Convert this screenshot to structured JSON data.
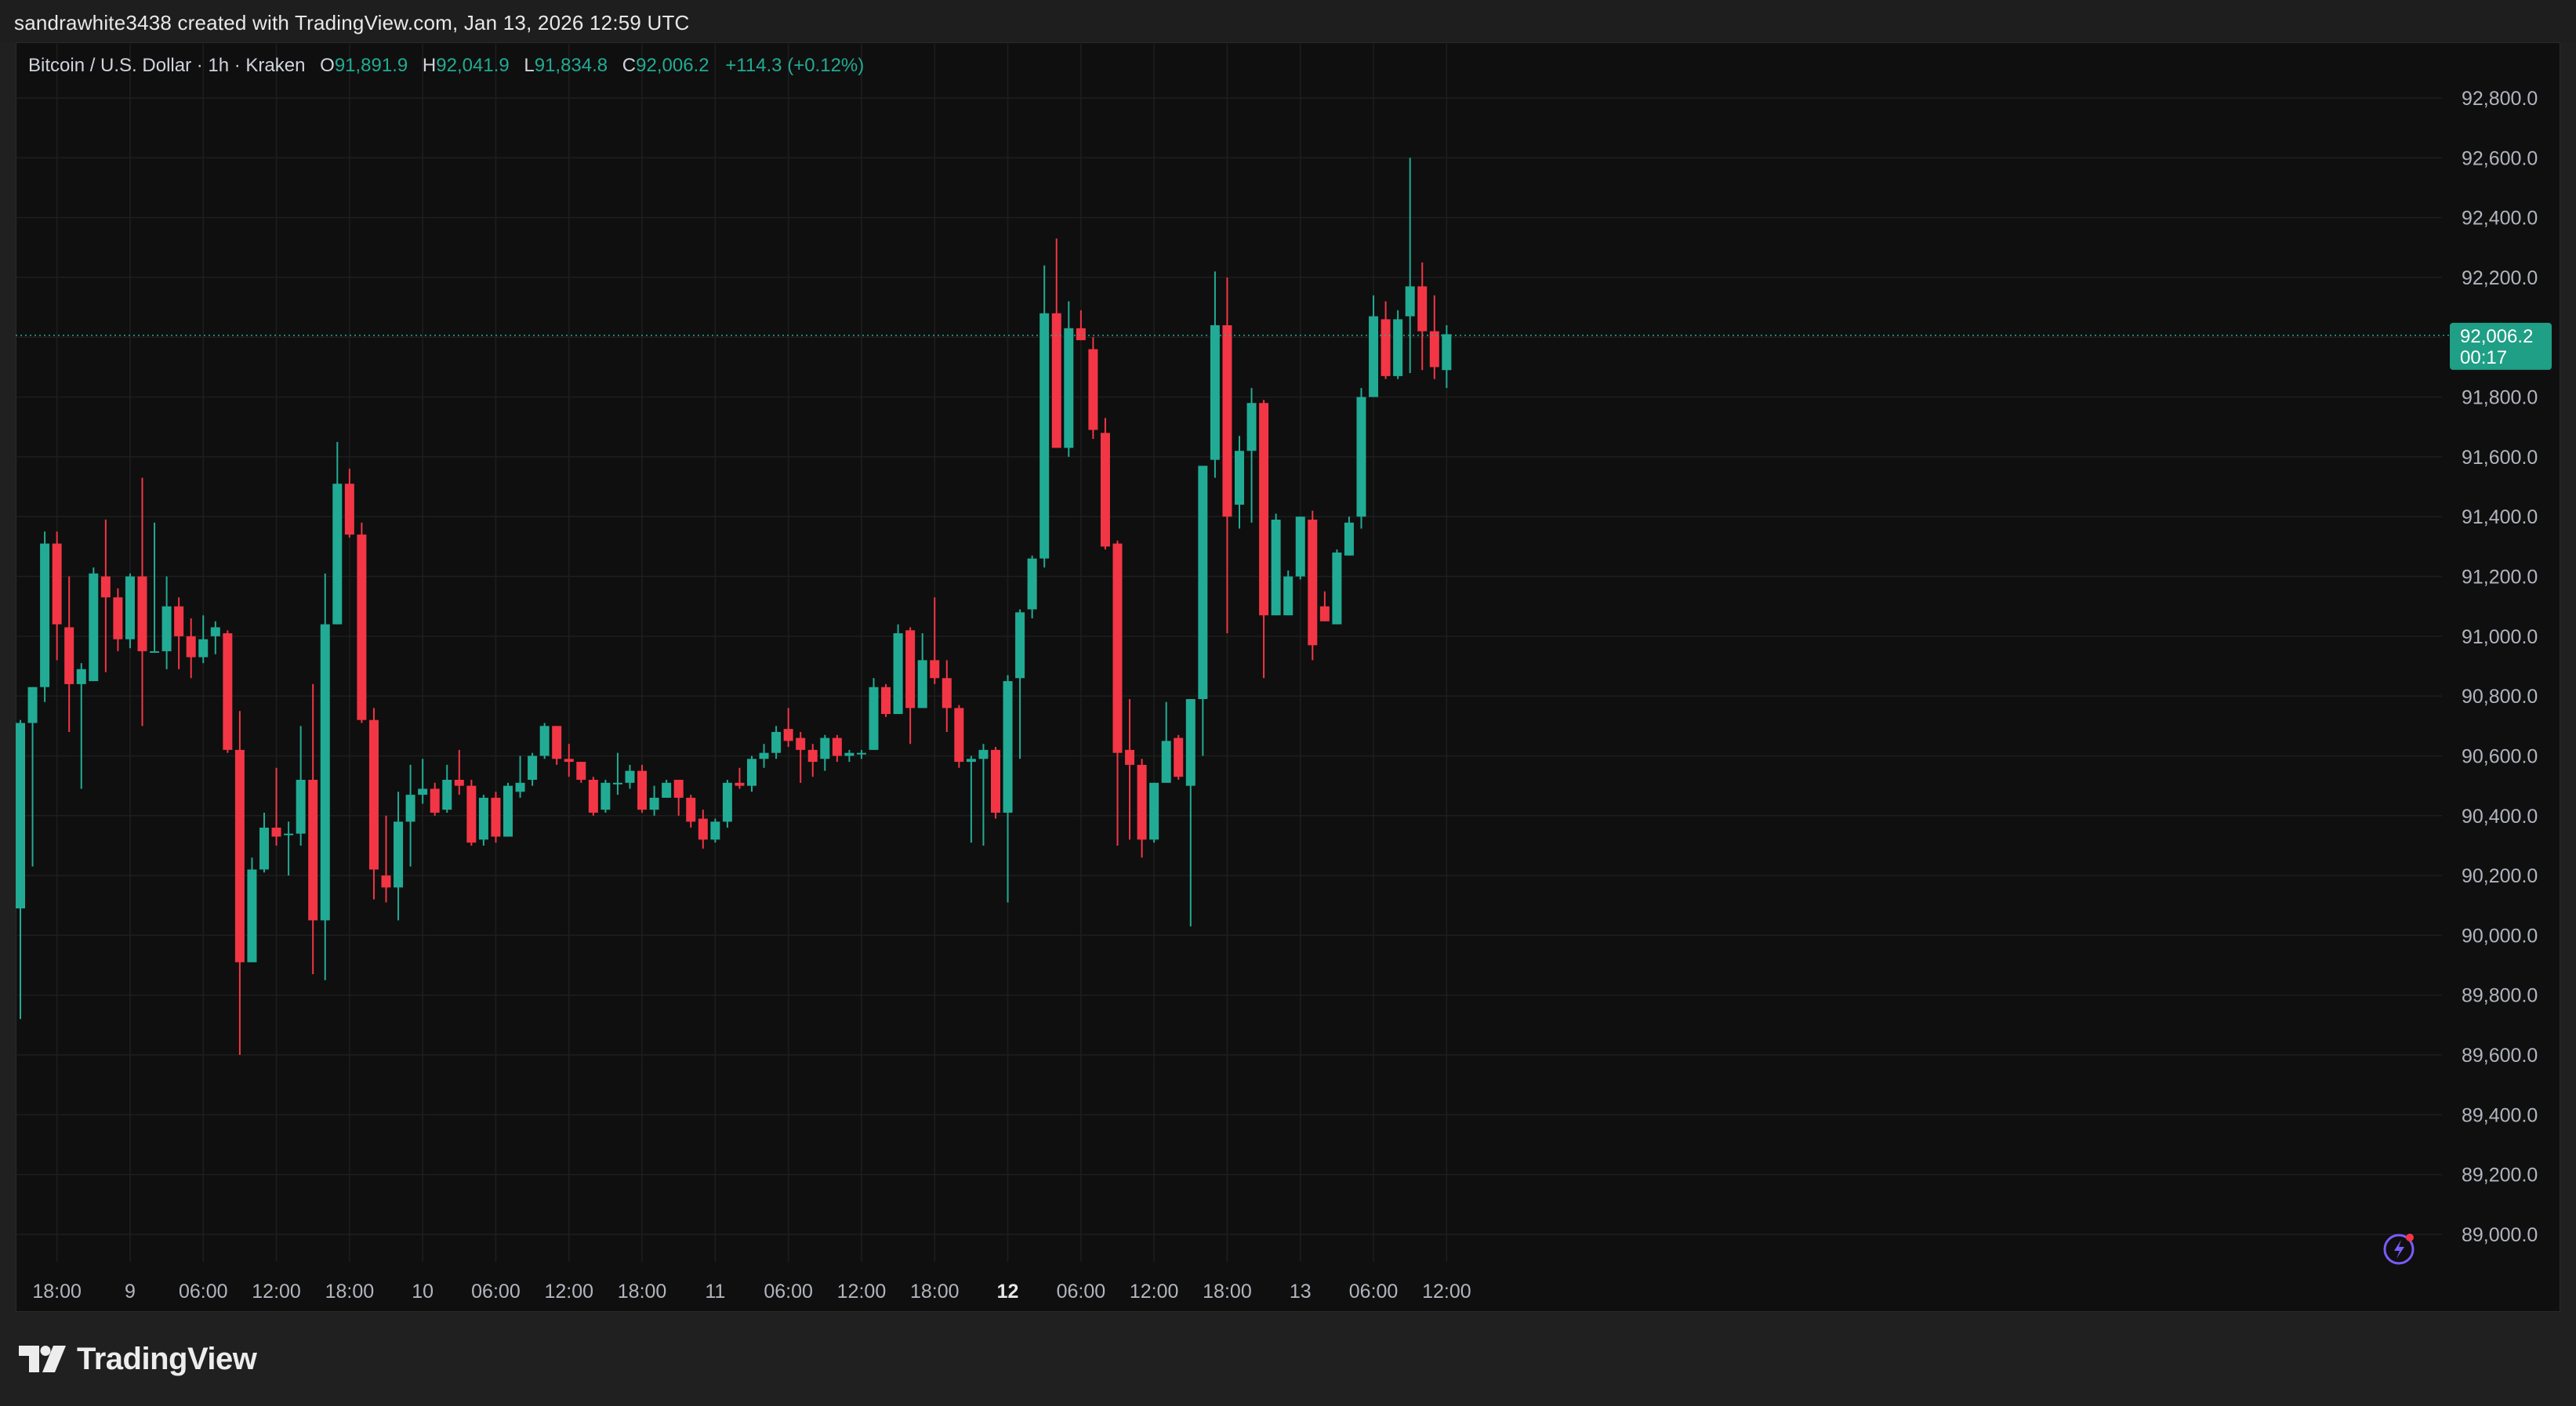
{
  "header": {
    "attribution": "sandrawhite3438 created with TradingView.com, Jan 13, 2026 12:59 UTC"
  },
  "legend": {
    "symbol": "Bitcoin / U.S. Dollar · 1h · Kraken",
    "o_label": "O",
    "o_value": "91,891.9",
    "h_label": "H",
    "h_value": "92,041.9",
    "l_label": "L",
    "l_value": "91,834.8",
    "c_label": "C",
    "c_value": "92,006.2",
    "change": "+114.3 (+0.12%)"
  },
  "price_tag": {
    "price": "92,006.2",
    "countdown": "00:17"
  },
  "footer": {
    "logo_text": "TradingView"
  },
  "colors": {
    "up": "#22ab94",
    "down": "#f23645",
    "background": "#0f0f0f",
    "grid": "#1e1e1e",
    "axis_text": "#b2b5be",
    "page": "#202020"
  },
  "chart_data": {
    "type": "candlestick",
    "ylim": [
      88800,
      93000
    ],
    "y_ticks": [
      89000,
      89200,
      89400,
      89600,
      89800,
      90000,
      90200,
      90400,
      90600,
      90800,
      91000,
      91200,
      91400,
      91600,
      91800,
      92000,
      92200,
      92400,
      92600,
      92800
    ],
    "y_tick_labels": [
      "89,000.0",
      "89,200.0",
      "89,400.0",
      "89,600.0",
      "89,800.0",
      "90,000.0",
      "90,200.0",
      "90,400.0",
      "90,600.0",
      "90,800.0",
      "91,000.0",
      "91,200.0",
      "91,400.0",
      "91,600.0",
      "91,800.0",
      "92,000.0",
      "92,200.0",
      "92,400.0",
      "92,600.0",
      "92,800.0"
    ],
    "x_ticks": [
      {
        "index": 3,
        "label": "18:00",
        "bold": false
      },
      {
        "index": 9,
        "label": "9",
        "bold": false
      },
      {
        "index": 15,
        "label": "06:00",
        "bold": false
      },
      {
        "index": 21,
        "label": "12:00",
        "bold": false
      },
      {
        "index": 27,
        "label": "18:00",
        "bold": false
      },
      {
        "index": 33,
        "label": "10",
        "bold": false
      },
      {
        "index": 39,
        "label": "06:00",
        "bold": false
      },
      {
        "index": 45,
        "label": "12:00",
        "bold": false
      },
      {
        "index": 51,
        "label": "18:00",
        "bold": false
      },
      {
        "index": 57,
        "label": "11",
        "bold": false
      },
      {
        "index": 63,
        "label": "06:00",
        "bold": false
      },
      {
        "index": 69,
        "label": "12:00",
        "bold": false
      },
      {
        "index": 75,
        "label": "18:00",
        "bold": false
      },
      {
        "index": 81,
        "label": "12",
        "bold": true
      },
      {
        "index": 87,
        "label": "06:00",
        "bold": false
      },
      {
        "index": 93,
        "label": "12:00",
        "bold": false
      },
      {
        "index": 99,
        "label": "18:00",
        "bold": false
      },
      {
        "index": 105,
        "label": "13",
        "bold": false
      },
      {
        "index": 111,
        "label": "06:00",
        "bold": false
      },
      {
        "index": 117,
        "label": "12:00",
        "bold": false
      }
    ],
    "last_price": 92006.2,
    "candles": [
      [
        90090,
        90710,
        89720,
        90720
      ],
      [
        90710,
        90830,
        90230,
        90830
      ],
      [
        90830,
        91310,
        90780,
        91350
      ],
      [
        91310,
        91040,
        90920,
        91350
      ],
      [
        91030,
        90840,
        90680,
        91200
      ],
      [
        90840,
        90890,
        90490,
        90910
      ],
      [
        90850,
        91210,
        90850,
        91230
      ],
      [
        91200,
        91130,
        90880,
        91390
      ],
      [
        91130,
        90990,
        90950,
        91160
      ],
      [
        90990,
        91200,
        90960,
        91210
      ],
      [
        91200,
        90950,
        90700,
        91530
      ],
      [
        90950,
        90950,
        90950,
        91380
      ],
      [
        90950,
        91100,
        90890,
        91200
      ],
      [
        91100,
        91000,
        90890,
        91130
      ],
      [
        91000,
        90930,
        90860,
        91060
      ],
      [
        90930,
        90990,
        90910,
        91070
      ],
      [
        91000,
        91030,
        90940,
        91050
      ],
      [
        91010,
        90620,
        90610,
        91020
      ],
      [
        90620,
        89910,
        89600,
        90750
      ],
      [
        89910,
        90220,
        89910,
        90260
      ],
      [
        90220,
        90360,
        90210,
        90410
      ],
      [
        90360,
        90330,
        90300,
        90560
      ],
      [
        90340,
        90340,
        90200,
        90380
      ],
      [
        90340,
        90520,
        90300,
        90700
      ],
      [
        90520,
        90050,
        89870,
        90840
      ],
      [
        90050,
        91040,
        89850,
        91210
      ],
      [
        91040,
        91510,
        91040,
        91650
      ],
      [
        91510,
        91340,
        91330,
        91560
      ],
      [
        91340,
        90720,
        90710,
        91380
      ],
      [
        90720,
        90220,
        90120,
        90760
      ],
      [
        90200,
        90160,
        90110,
        90400
      ],
      [
        90160,
        90380,
        90050,
        90480
      ],
      [
        90380,
        90470,
        90230,
        90570
      ],
      [
        90470,
        90490,
        90440,
        90590
      ],
      [
        90490,
        90410,
        90400,
        90510
      ],
      [
        90420,
        90520,
        90410,
        90570
      ],
      [
        90520,
        90500,
        90470,
        90620
      ],
      [
        90500,
        90310,
        90300,
        90520
      ],
      [
        90320,
        90460,
        90300,
        90470
      ],
      [
        90460,
        90330,
        90310,
        90480
      ],
      [
        90330,
        90500,
        90330,
        90510
      ],
      [
        90480,
        90510,
        90460,
        90600
      ],
      [
        90520,
        90600,
        90500,
        90610
      ],
      [
        90600,
        90700,
        90590,
        90710
      ],
      [
        90700,
        90590,
        90570,
        90700
      ],
      [
        90590,
        90580,
        90530,
        90640
      ],
      [
        90580,
        90520,
        90510,
        90580
      ],
      [
        90520,
        90410,
        90400,
        90530
      ],
      [
        90420,
        90510,
        90410,
        90520
      ],
      [
        90510,
        90510,
        90470,
        90610
      ],
      [
        90510,
        90550,
        90490,
        90570
      ],
      [
        90550,
        90420,
        90410,
        90570
      ],
      [
        90420,
        90460,
        90400,
        90500
      ],
      [
        90460,
        90510,
        90460,
        90520
      ],
      [
        90520,
        90460,
        90400,
        90520
      ],
      [
        90460,
        90380,
        90360,
        90470
      ],
      [
        90390,
        90320,
        90290,
        90420
      ],
      [
        90320,
        90380,
        90310,
        90390
      ],
      [
        90380,
        90510,
        90360,
        90520
      ],
      [
        90510,
        90500,
        90490,
        90560
      ],
      [
        90500,
        90590,
        90480,
        90600
      ],
      [
        90590,
        90610,
        90560,
        90640
      ],
      [
        90610,
        90680,
        90590,
        90700
      ],
      [
        90690,
        90650,
        90630,
        90760
      ],
      [
        90660,
        90620,
        90510,
        90680
      ],
      [
        90620,
        90580,
        90530,
        90640
      ],
      [
        90590,
        90660,
        90550,
        90670
      ],
      [
        90660,
        90600,
        90580,
        90670
      ],
      [
        90600,
        90610,
        90580,
        90620
      ],
      [
        90610,
        90610,
        90590,
        90620
      ],
      [
        90620,
        90830,
        90620,
        90860
      ],
      [
        90830,
        90740,
        90730,
        90840
      ],
      [
        90740,
        91010,
        90740,
        91040
      ],
      [
        91020,
        90760,
        90640,
        91030
      ],
      [
        90760,
        90920,
        90760,
        91010
      ],
      [
        90920,
        90860,
        90840,
        91130
      ],
      [
        90860,
        90760,
        90680,
        90920
      ],
      [
        90760,
        90580,
        90560,
        90770
      ],
      [
        90580,
        90590,
        90310,
        90600
      ],
      [
        90590,
        90620,
        90300,
        90640
      ],
      [
        90620,
        90410,
        90390,
        90630
      ],
      [
        90410,
        90850,
        90110,
        90870
      ],
      [
        90860,
        91080,
        90590,
        91090
      ],
      [
        91090,
        91260,
        91060,
        91270
      ],
      [
        91260,
        92080,
        91230,
        92240
      ],
      [
        92080,
        91630,
        91640,
        92330
      ],
      [
        91630,
        92030,
        91600,
        92120
      ],
      [
        92030,
        91990,
        91990,
        92090
      ],
      [
        91960,
        91690,
        91660,
        92000
      ],
      [
        91680,
        91300,
        91290,
        91730
      ],
      [
        91310,
        90610,
        90300,
        91320
      ],
      [
        90620,
        90570,
        90320,
        90790
      ],
      [
        90570,
        90320,
        90260,
        90590
      ],
      [
        90320,
        90510,
        90310,
        90510
      ],
      [
        90510,
        90650,
        90510,
        90780
      ],
      [
        90660,
        90530,
        90520,
        90670
      ],
      [
        90500,
        90790,
        90030,
        90790
      ],
      [
        90790,
        91570,
        90600,
        91560
      ],
      [
        91590,
        92040,
        91530,
        92220
      ],
      [
        92040,
        91400,
        91010,
        92200
      ],
      [
        91440,
        91620,
        91360,
        91670
      ],
      [
        91620,
        91780,
        91380,
        91830
      ],
      [
        91780,
        91070,
        90860,
        91790
      ],
      [
        91070,
        91390,
        91070,
        91410
      ],
      [
        91070,
        91200,
        91070,
        91220
      ],
      [
        91200,
        91400,
        91190,
        91400
      ],
      [
        91390,
        90970,
        90920,
        91420
      ],
      [
        91100,
        91050,
        91050,
        91150
      ],
      [
        91040,
        91280,
        91040,
        91290
      ],
      [
        91270,
        91380,
        91270,
        91400
      ],
      [
        91400,
        91800,
        91360,
        91830
      ],
      [
        91800,
        92070,
        91800,
        92140
      ],
      [
        92060,
        91870,
        91860,
        92120
      ],
      [
        91870,
        92060,
        91860,
        92090
      ],
      [
        92070,
        92170,
        91880,
        92600
      ],
      [
        92170,
        92020,
        91890,
        92250
      ],
      [
        92020,
        91900,
        91860,
        92140
      ],
      [
        91890,
        92010,
        91830,
        92040
      ]
    ]
  }
}
